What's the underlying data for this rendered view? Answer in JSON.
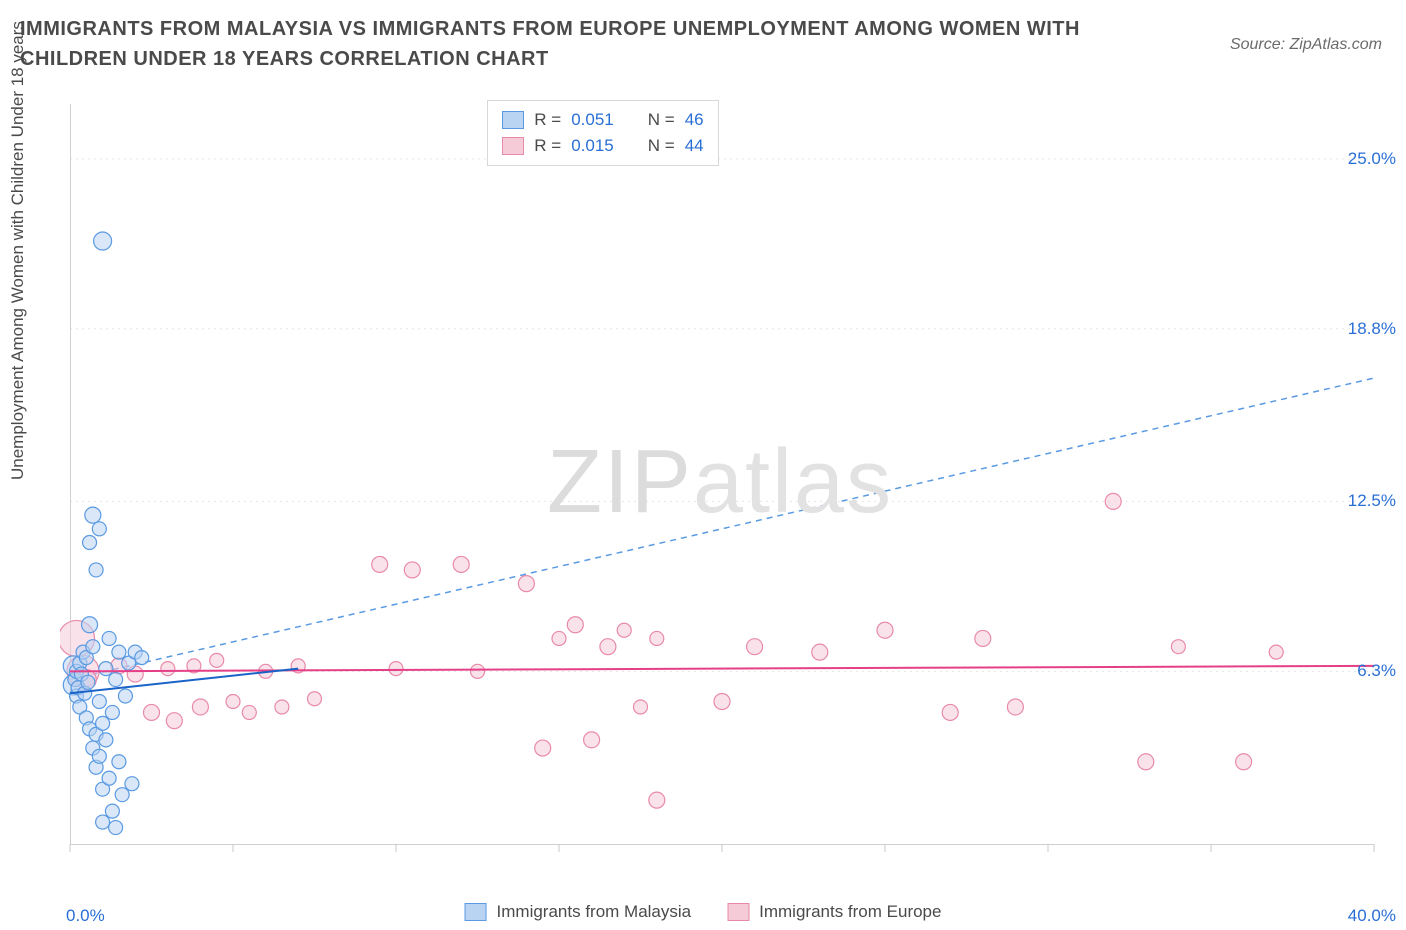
{
  "title": "IMMIGRANTS FROM MALAYSIA VS IMMIGRANTS FROM EUROPE UNEMPLOYMENT AMONG WOMEN WITH CHILDREN UNDER 18 YEARS CORRELATION CHART",
  "source_prefix": "Source: ",
  "source_name": "ZipAtlas.com",
  "ylabel": "Unemployment Among Women with Children Under 18 years",
  "watermark_a": "ZIP",
  "watermark_b": "atlas",
  "chart": {
    "type": "scatter",
    "background_color": "#ffffff",
    "grid_color": "#e6e6e6",
    "grid_dash": "2,4",
    "axis_color": "#d0d0d0",
    "tick_color": "#c8c8c8",
    "xlim": [
      0,
      40
    ],
    "ylim": [
      0,
      27
    ],
    "x_ticks": [
      0,
      5,
      10,
      15,
      20,
      25,
      30,
      35,
      40
    ],
    "x_tick_labels": {
      "0": "0.0%",
      "40": "40.0%"
    },
    "y_gridlines": [
      6.3,
      12.5,
      18.8,
      25.0
    ],
    "y_tick_labels": {
      "6.3": "6.3%",
      "12.5": "12.5%",
      "18.8": "18.8%",
      "25.0": "25.0%"
    },
    "tick_label_color": "#2a6fd6",
    "tick_label_fontsize": 17,
    "ylabel_fontsize": 17,
    "title_fontsize": 20,
    "title_color": "#4a4a4a",
    "marker_stroke_width": 1.2,
    "series": [
      {
        "name": "Immigrants from Malaysia",
        "fill": "#b9d4f3",
        "stroke": "#5a9ae2",
        "fill_opacity": 0.55,
        "R": 0.051,
        "N": 46,
        "trend": {
          "type": "dashed",
          "color": "#5a9ae2",
          "width": 1.5,
          "dash": "6,5",
          "y_at_x0": 6.0,
          "y_at_xmax": 17.0
        },
        "solid_segment": {
          "color": "#1a63c7",
          "width": 2,
          "x0": 0.0,
          "y0": 5.5,
          "x1": 7.0,
          "y1": 6.4
        },
        "points": [
          {
            "x": 0.1,
            "y": 5.8,
            "r": 10
          },
          {
            "x": 0.1,
            "y": 6.5,
            "r": 10
          },
          {
            "x": 0.15,
            "y": 6.0,
            "r": 7
          },
          {
            "x": 0.2,
            "y": 6.3,
            "r": 7
          },
          {
            "x": 0.2,
            "y": 5.4,
            "r": 7
          },
          {
            "x": 0.25,
            "y": 5.7,
            "r": 7
          },
          {
            "x": 0.3,
            "y": 6.6,
            "r": 7
          },
          {
            "x": 0.3,
            "y": 5.0,
            "r": 7
          },
          {
            "x": 0.35,
            "y": 6.2,
            "r": 7
          },
          {
            "x": 0.4,
            "y": 7.0,
            "r": 7
          },
          {
            "x": 0.45,
            "y": 5.5,
            "r": 7
          },
          {
            "x": 0.5,
            "y": 4.6,
            "r": 7
          },
          {
            "x": 0.5,
            "y": 6.8,
            "r": 7
          },
          {
            "x": 0.55,
            "y": 5.9,
            "r": 7
          },
          {
            "x": 0.6,
            "y": 4.2,
            "r": 7
          },
          {
            "x": 0.6,
            "y": 8.0,
            "r": 8
          },
          {
            "x": 0.7,
            "y": 3.5,
            "r": 7
          },
          {
            "x": 0.7,
            "y": 7.2,
            "r": 7
          },
          {
            "x": 0.8,
            "y": 4.0,
            "r": 7
          },
          {
            "x": 0.8,
            "y": 2.8,
            "r": 7
          },
          {
            "x": 0.9,
            "y": 3.2,
            "r": 7
          },
          {
            "x": 0.9,
            "y": 5.2,
            "r": 7
          },
          {
            "x": 1.0,
            "y": 2.0,
            "r": 7
          },
          {
            "x": 1.0,
            "y": 4.4,
            "r": 7
          },
          {
            "x": 1.1,
            "y": 6.4,
            "r": 7
          },
          {
            "x": 1.1,
            "y": 3.8,
            "r": 7
          },
          {
            "x": 1.2,
            "y": 2.4,
            "r": 7
          },
          {
            "x": 1.2,
            "y": 7.5,
            "r": 7
          },
          {
            "x": 1.3,
            "y": 4.8,
            "r": 7
          },
          {
            "x": 1.3,
            "y": 1.2,
            "r": 7
          },
          {
            "x": 1.4,
            "y": 6.0,
            "r": 7
          },
          {
            "x": 1.5,
            "y": 3.0,
            "r": 7
          },
          {
            "x": 1.5,
            "y": 7.0,
            "r": 7
          },
          {
            "x": 1.6,
            "y": 1.8,
            "r": 7
          },
          {
            "x": 1.7,
            "y": 5.4,
            "r": 7
          },
          {
            "x": 1.8,
            "y": 6.6,
            "r": 7
          },
          {
            "x": 1.9,
            "y": 2.2,
            "r": 7
          },
          {
            "x": 2.0,
            "y": 7.0,
            "r": 7
          },
          {
            "x": 2.2,
            "y": 6.8,
            "r": 7
          },
          {
            "x": 0.8,
            "y": 10.0,
            "r": 7
          },
          {
            "x": 0.9,
            "y": 11.5,
            "r": 7
          },
          {
            "x": 0.6,
            "y": 11.0,
            "r": 7
          },
          {
            "x": 0.7,
            "y": 12.0,
            "r": 8
          },
          {
            "x": 1.0,
            "y": 0.8,
            "r": 7
          },
          {
            "x": 1.4,
            "y": 0.6,
            "r": 7
          },
          {
            "x": 1.0,
            "y": 22.0,
            "r": 9
          }
        ]
      },
      {
        "name": "Immigrants from Europe",
        "fill": "#f6cbd8",
        "stroke": "#e88aa8",
        "fill_opacity": 0.55,
        "R": 0.015,
        "N": 44,
        "trend": {
          "type": "solid",
          "color": "#e53f87",
          "width": 2,
          "dash": "",
          "y_at_x0": 6.3,
          "y_at_xmax": 6.5
        },
        "points": [
          {
            "x": 0.2,
            "y": 7.5,
            "r": 18
          },
          {
            "x": 0.4,
            "y": 6.3,
            "r": 16
          },
          {
            "x": 0.5,
            "y": 6.0,
            "r": 10
          },
          {
            "x": 1.5,
            "y": 6.5,
            "r": 8
          },
          {
            "x": 2.0,
            "y": 6.2,
            "r": 8
          },
          {
            "x": 2.5,
            "y": 4.8,
            "r": 8
          },
          {
            "x": 3.0,
            "y": 6.4,
            "r": 7
          },
          {
            "x": 3.2,
            "y": 4.5,
            "r": 8
          },
          {
            "x": 3.8,
            "y": 6.5,
            "r": 7
          },
          {
            "x": 4.0,
            "y": 5.0,
            "r": 8
          },
          {
            "x": 4.5,
            "y": 6.7,
            "r": 7
          },
          {
            "x": 5.0,
            "y": 5.2,
            "r": 7
          },
          {
            "x": 5.5,
            "y": 4.8,
            "r": 7
          },
          {
            "x": 6.0,
            "y": 6.3,
            "r": 7
          },
          {
            "x": 6.5,
            "y": 5.0,
            "r": 7
          },
          {
            "x": 7.0,
            "y": 6.5,
            "r": 7
          },
          {
            "x": 7.5,
            "y": 5.3,
            "r": 7
          },
          {
            "x": 9.5,
            "y": 10.2,
            "r": 8
          },
          {
            "x": 10.5,
            "y": 10.0,
            "r": 8
          },
          {
            "x": 10.0,
            "y": 6.4,
            "r": 7
          },
          {
            "x": 12.0,
            "y": 10.2,
            "r": 8
          },
          {
            "x": 12.5,
            "y": 6.3,
            "r": 7
          },
          {
            "x": 14.0,
            "y": 9.5,
            "r": 8
          },
          {
            "x": 14.5,
            "y": 3.5,
            "r": 8
          },
          {
            "x": 15.0,
            "y": 7.5,
            "r": 7
          },
          {
            "x": 15.5,
            "y": 8.0,
            "r": 8
          },
          {
            "x": 16.0,
            "y": 3.8,
            "r": 8
          },
          {
            "x": 16.5,
            "y": 7.2,
            "r": 8
          },
          {
            "x": 17.0,
            "y": 7.8,
            "r": 7
          },
          {
            "x": 17.5,
            "y": 5.0,
            "r": 7
          },
          {
            "x": 18.0,
            "y": 7.5,
            "r": 7
          },
          {
            "x": 18.0,
            "y": 1.6,
            "r": 8
          },
          {
            "x": 20.0,
            "y": 5.2,
            "r": 8
          },
          {
            "x": 21.0,
            "y": 7.2,
            "r": 8
          },
          {
            "x": 23.0,
            "y": 7.0,
            "r": 8
          },
          {
            "x": 25.0,
            "y": 7.8,
            "r": 8
          },
          {
            "x": 27.0,
            "y": 4.8,
            "r": 8
          },
          {
            "x": 28.0,
            "y": 7.5,
            "r": 8
          },
          {
            "x": 29.0,
            "y": 5.0,
            "r": 8
          },
          {
            "x": 32.0,
            "y": 12.5,
            "r": 8
          },
          {
            "x": 33.0,
            "y": 3.0,
            "r": 8
          },
          {
            "x": 34.0,
            "y": 7.2,
            "r": 7
          },
          {
            "x": 36.0,
            "y": 3.0,
            "r": 8
          },
          {
            "x": 37.0,
            "y": 7.0,
            "r": 7
          }
        ]
      }
    ],
    "legend_top": {
      "border_color": "#d8d8d8",
      "label_R": "R =",
      "label_N": "N ="
    },
    "legend_bottom": [
      {
        "label": "Immigrants from Malaysia",
        "fill": "#b9d4f3",
        "stroke": "#5a9ae2"
      },
      {
        "label": "Immigrants from Europe",
        "fill": "#f6cbd8",
        "stroke": "#e88aa8"
      }
    ]
  }
}
